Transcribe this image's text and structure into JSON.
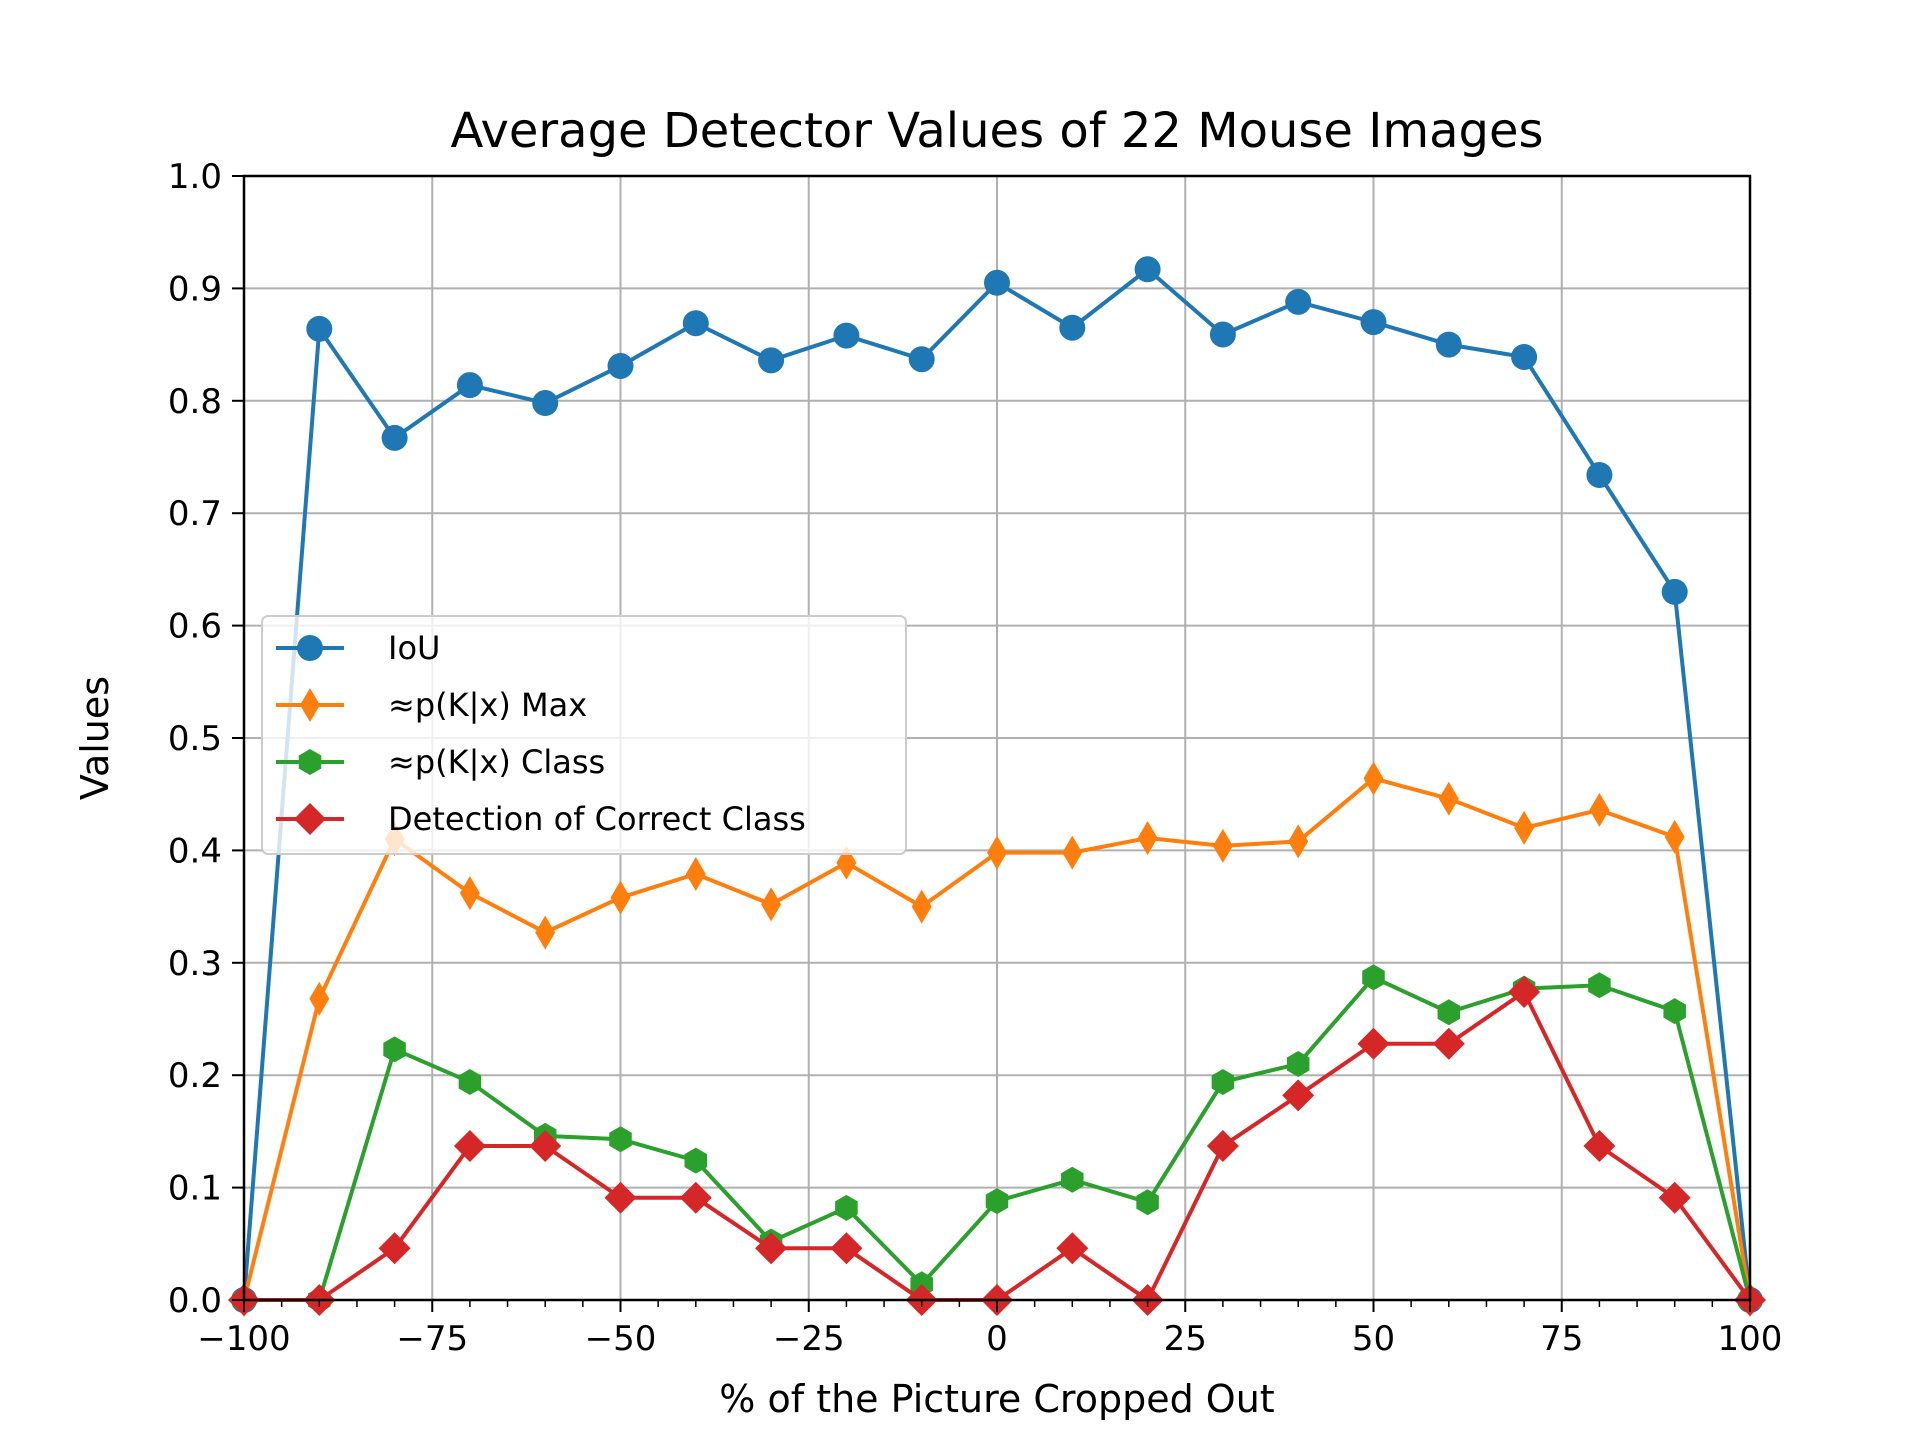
{
  "chart_data": {
    "type": "line",
    "title": "Average Detector Values of 22 Mouse Images",
    "xlabel": "% of the Picture Cropped Out",
    "ylabel": "Values",
    "xlim": [
      -100,
      100
    ],
    "ylim": [
      0.0,
      1.0
    ],
    "xticks": [
      -100,
      -75,
      -50,
      -25,
      0,
      25,
      50,
      75,
      100
    ],
    "xtick_labels": [
      "−100",
      "−75",
      "−50",
      "−25",
      "0",
      "25",
      "50",
      "75",
      "100"
    ],
    "yticks": [
      0.0,
      0.1,
      0.2,
      0.3,
      0.4,
      0.5,
      0.6,
      0.7,
      0.8,
      0.9,
      1.0
    ],
    "ytick_labels": [
      "0.0",
      "0.1",
      "0.2",
      "0.3",
      "0.4",
      "0.5",
      "0.6",
      "0.7",
      "0.8",
      "0.9",
      "1.0"
    ],
    "grid": true,
    "legend_position": "center-left",
    "x": [
      -100,
      -90,
      -80,
      -70,
      -60,
      -50,
      -40,
      -30,
      -20,
      -10,
      0,
      10,
      20,
      30,
      40,
      50,
      60,
      70,
      80,
      90,
      100
    ],
    "series": [
      {
        "name": "IoU",
        "color": "#1f77b4",
        "marker": "circle",
        "values": [
          0.0,
          0.864,
          0.767,
          0.814,
          0.798,
          0.831,
          0.869,
          0.836,
          0.858,
          0.837,
          0.905,
          0.865,
          0.917,
          0.859,
          0.888,
          0.87,
          0.85,
          0.839,
          0.734,
          0.63,
          0.0
        ]
      },
      {
        "name": "≈p(K|x) Max",
        "color": "#ff7f0e",
        "marker": "thin-diamond",
        "values": [
          0.0,
          0.268,
          0.41,
          0.362,
          0.327,
          0.358,
          0.379,
          0.352,
          0.389,
          0.35,
          0.398,
          0.398,
          0.411,
          0.404,
          0.408,
          0.464,
          0.446,
          0.42,
          0.436,
          0.412,
          0.0
        ]
      },
      {
        "name": "≈p(K|x) Class",
        "color": "#2ca02c",
        "marker": "hexagon",
        "values": [
          0.0,
          0.0,
          0.223,
          0.194,
          0.146,
          0.143,
          0.124,
          0.052,
          0.082,
          0.014,
          0.088,
          0.107,
          0.087,
          0.194,
          0.21,
          0.287,
          0.256,
          0.277,
          0.28,
          0.257,
          0.0
        ]
      },
      {
        "name": "Detection of Correct Class",
        "color": "#d62728",
        "marker": "diamond",
        "values": [
          0.0,
          0.0,
          0.046,
          0.137,
          0.137,
          0.091,
          0.091,
          0.046,
          0.046,
          0.0,
          0.0,
          0.046,
          0.0,
          0.137,
          0.182,
          0.228,
          0.228,
          0.274,
          0.137,
          0.091,
          0.0
        ]
      }
    ]
  }
}
